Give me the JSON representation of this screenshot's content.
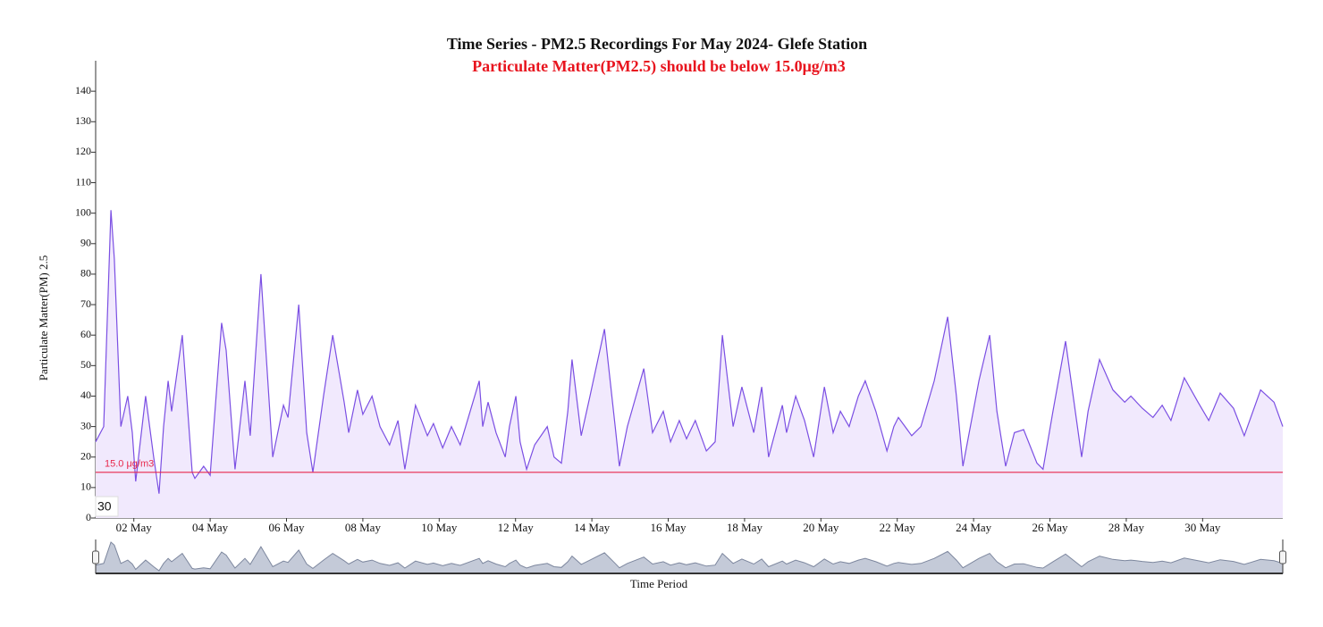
{
  "chart_data": {
    "type": "line",
    "title": "Time Series - PM2.5 Recordings For May 2024- Glefe Station",
    "subtitle": "Particulate Matter(PM2.5) should be below 15.0μg/m3",
    "ylabel": "Particulate Matter(PM) 2.5",
    "xlabel": "Time Period",
    "range_label": "30",
    "threshold": {
      "value": 15,
      "label": "15.0 μg/m3",
      "color": "#e8274b"
    },
    "xlim": [
      1,
      32.1
    ],
    "xticks": [
      {
        "value": 2,
        "label": "02 May"
      },
      {
        "value": 4,
        "label": "04 May"
      },
      {
        "value": 6,
        "label": "06 May"
      },
      {
        "value": 8,
        "label": "08 May"
      },
      {
        "value": 10,
        "label": "10 May"
      },
      {
        "value": 12,
        "label": "12 May"
      },
      {
        "value": 14,
        "label": "14 May"
      },
      {
        "value": 16,
        "label": "16 May"
      },
      {
        "value": 18,
        "label": "18 May"
      },
      {
        "value": 20,
        "label": "20 May"
      },
      {
        "value": 22,
        "label": "22 May"
      },
      {
        "value": 24,
        "label": "24 May"
      },
      {
        "value": 26,
        "label": "26 May"
      },
      {
        "value": 28,
        "label": "28 May"
      },
      {
        "value": 30,
        "label": "30 May"
      }
    ],
    "ylim": [
      0,
      150
    ],
    "yticks": [
      0,
      10,
      20,
      30,
      40,
      50,
      60,
      70,
      80,
      90,
      100,
      110,
      120,
      130,
      140
    ],
    "x": [
      1.0,
      1.21,
      1.4,
      1.49,
      1.66,
      1.84,
      1.96,
      2.05,
      2.31,
      2.52,
      2.66,
      2.78,
      2.9,
      2.99,
      3.27,
      3.53,
      3.6,
      3.83,
      4.0,
      4.3,
      4.42,
      4.65,
      4.91,
      5.05,
      5.33,
      5.64,
      5.92,
      6.04,
      6.32,
      6.53,
      6.69,
      6.97,
      7.21,
      7.51,
      7.63,
      7.86,
      8.0,
      8.24,
      8.45,
      8.7,
      8.92,
      9.1,
      9.38,
      9.69,
      9.85,
      10.09,
      10.32,
      10.55,
      11.05,
      11.14,
      11.28,
      11.49,
      11.73,
      11.84,
      12.01,
      12.12,
      12.29,
      12.5,
      12.83,
      13.01,
      13.2,
      13.37,
      13.48,
      13.72,
      13.95,
      14.33,
      14.61,
      14.72,
      14.93,
      15.36,
      15.59,
      15.87,
      16.06,
      16.29,
      16.48,
      16.71,
      17.0,
      17.23,
      17.42,
      17.7,
      17.93,
      18.24,
      18.45,
      18.63,
      18.99,
      19.1,
      19.34,
      19.57,
      19.81,
      20.09,
      20.32,
      20.51,
      20.74,
      20.98,
      21.16,
      21.44,
      21.73,
      21.91,
      22.03,
      22.38,
      22.62,
      22.97,
      23.32,
      23.55,
      23.72,
      24.14,
      24.42,
      24.61,
      24.84,
      25.07,
      25.31,
      25.66,
      25.82,
      26.08,
      26.41,
      26.83,
      27.0,
      27.3,
      27.65,
      27.96,
      28.12,
      28.42,
      28.7,
      28.94,
      29.17,
      29.52,
      29.88,
      30.16,
      30.46,
      30.81,
      31.09,
      31.52,
      31.87,
      32.1
    ],
    "series": [
      {
        "name": "PM2.5",
        "color": "#7b4fe3",
        "fill": "#f1e9fd",
        "values": [
          25,
          30,
          101,
          85,
          30,
          40,
          28,
          12,
          40,
          20,
          8,
          30,
          45,
          35,
          60,
          15,
          13,
          17,
          14,
          64,
          55,
          16,
          45,
          27,
          80,
          20,
          37,
          33,
          70,
          28,
          15,
          40,
          60,
          38,
          28,
          42,
          34,
          40,
          30,
          24,
          32,
          16,
          37,
          27,
          31,
          23,
          30,
          24,
          45,
          30,
          38,
          28,
          20,
          30,
          40,
          25,
          16,
          24,
          30,
          20,
          18,
          35,
          52,
          27,
          40,
          62,
          30,
          17,
          30,
          49,
          28,
          35,
          25,
          32,
          26,
          32,
          22,
          25,
          60,
          30,
          43,
          28,
          43,
          20,
          37,
          28,
          40,
          32,
          20,
          43,
          28,
          35,
          30,
          40,
          45,
          35,
          22,
          30,
          33,
          27,
          30,
          45,
          66,
          40,
          17,
          45,
          60,
          35,
          17,
          28,
          29,
          18,
          16,
          35,
          58,
          20,
          35,
          52,
          42,
          38,
          40,
          36,
          33,
          37,
          32,
          46,
          38,
          32,
          41,
          36,
          27,
          42,
          38,
          30
        ]
      }
    ]
  }
}
